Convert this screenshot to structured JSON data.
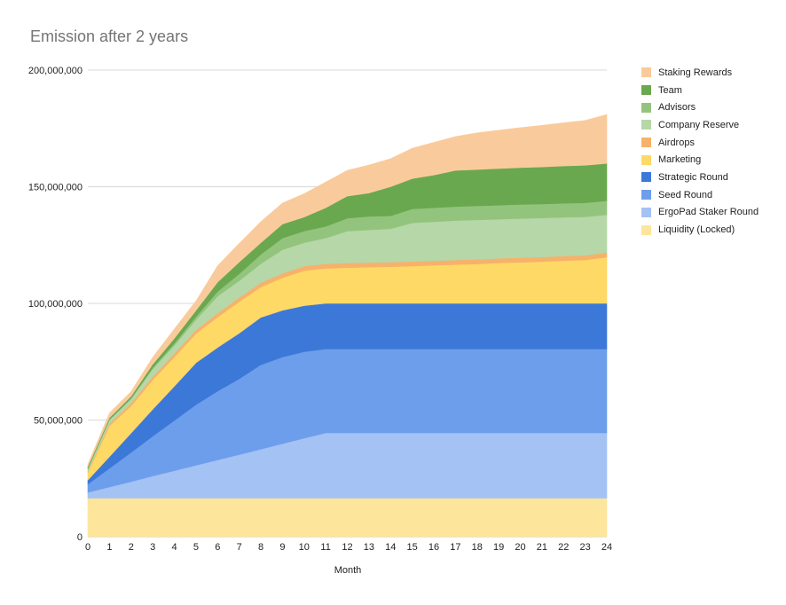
{
  "chart_data": {
    "type": "area",
    "stacked": true,
    "title": "Emission after 2 years",
    "xlabel": "Month",
    "ylabel": "",
    "x": [
      0,
      1,
      2,
      3,
      4,
      5,
      6,
      7,
      8,
      9,
      10,
      11,
      12,
      13,
      14,
      15,
      16,
      17,
      18,
      19,
      20,
      21,
      22,
      23,
      24
    ],
    "x_tick_labels": [
      "0",
      "1",
      "2",
      "3",
      "4",
      "5",
      "6",
      "7",
      "8",
      "9",
      "10",
      "11",
      "12",
      "13",
      "14",
      "15",
      "16",
      "17",
      "18",
      "19",
      "20",
      "21",
      "22",
      "23",
      "24"
    ],
    "ylim": [
      0,
      200000000
    ],
    "y_ticks": [
      0,
      50000000,
      100000000,
      150000000,
      200000000
    ],
    "y_tick_labels": [
      "0",
      "50,000,000",
      "100,000,000",
      "150,000,000",
      "200,000,000"
    ],
    "grid": true,
    "legend_position": "right",
    "series": [
      {
        "name": "Liquidity (Locked)",
        "color": "#fde59c",
        "values": [
          16500000,
          16500000,
          16500000,
          16500000,
          16500000,
          16500000,
          16500000,
          16500000,
          16500000,
          16500000,
          16500000,
          16500000,
          16500000,
          16500000,
          16500000,
          16500000,
          16500000,
          16500000,
          16500000,
          16500000,
          16500000,
          16500000,
          16500000,
          16500000,
          16500000
        ]
      },
      {
        "name": "ErgoPad Staker Round",
        "color": "#a4c2f4",
        "values": [
          2500000,
          4800000,
          7100000,
          9500000,
          11800000,
          14100000,
          16400000,
          18700000,
          21000000,
          23400000,
          25700000,
          28000000,
          28000000,
          28000000,
          28000000,
          28000000,
          28000000,
          28000000,
          28000000,
          28000000,
          28000000,
          28000000,
          28000000,
          28000000,
          28000000
        ]
      },
      {
        "name": "Seed Round",
        "color": "#6d9eeb",
        "values": [
          3500000,
          8000000,
          12500000,
          17100000,
          21500000,
          26000000,
          29500000,
          32500000,
          36200000,
          37100000,
          37100000,
          36000000,
          36000000,
          36000000,
          36000000,
          36000000,
          36000000,
          36000000,
          36000000,
          36000000,
          36000000,
          36000000,
          36000000,
          36000000,
          36000000
        ]
      },
      {
        "name": "Strategic Round",
        "color": "#3c78d8",
        "values": [
          1800000,
          5000000,
          8300000,
          11500000,
          14700000,
          17900000,
          18700000,
          19500000,
          20300000,
          20000000,
          19700000,
          19500000,
          19500000,
          19500000,
          19500000,
          19500000,
          19500000,
          19500000,
          19500000,
          19500000,
          19500000,
          19500000,
          19500000,
          19500000,
          19500000
        ]
      },
      {
        "name": "Marketing",
        "color": "#ffd966",
        "values": [
          3100000,
          13200000,
          11600000,
          12600000,
          12500000,
          12500000,
          13000000,
          13500000,
          13000000,
          14000000,
          15000000,
          15000000,
          15300000,
          15500000,
          15700000,
          16000000,
          16300000,
          16600000,
          16900000,
          17300000,
          17600000,
          17900000,
          18300000,
          18600000,
          19800000
        ]
      },
      {
        "name": "Airdrops",
        "color": "#f6b26b",
        "values": [
          500000,
          1000000,
          1200000,
          1400000,
          1500000,
          1600000,
          1700000,
          1800000,
          1900000,
          1900000,
          2000000,
          2000000,
          2000000,
          2000000,
          2000000,
          2000000,
          2000000,
          2000000,
          2000000,
          2000000,
          2000000,
          2000000,
          2000000,
          2000000,
          2000000
        ]
      },
      {
        "name": "Company Reserve",
        "color": "#b6d7a8",
        "values": [
          1100000,
          1500000,
          1800000,
          3300000,
          3500000,
          4400000,
          7300000,
          7200000,
          8100000,
          10100000,
          10000000,
          11000000,
          13700000,
          14000000,
          14300000,
          16500000,
          16700000,
          16900000,
          16900000,
          16800000,
          16800000,
          16700000,
          16600000,
          16500000,
          16200000
        ]
      },
      {
        "name": "Advisors",
        "color": "#93c47d",
        "values": [
          200000,
          300000,
          400000,
          600000,
          900000,
          1300000,
          2000000,
          3000000,
          4000000,
          5000000,
          5000000,
          5000000,
          5500000,
          5800000,
          5500000,
          6000000,
          6000000,
          6000000,
          6000000,
          6000000,
          6000000,
          6000000,
          6000000,
          6000000,
          6000000
        ]
      },
      {
        "name": "Team",
        "color": "#6aa84f",
        "values": [
          800000,
          700000,
          800000,
          1400000,
          2100000,
          2700000,
          4000000,
          5000000,
          5000000,
          6000000,
          6000000,
          8000000,
          9500000,
          10000000,
          12500000,
          13000000,
          14000000,
          15500000,
          15600000,
          15700000,
          15800000,
          15900000,
          16000000,
          16100000,
          16000000
        ]
      },
      {
        "name": "Staking Rewards",
        "color": "#f9cb9c",
        "values": [
          1000000,
          2000000,
          2000000,
          3000000,
          4000000,
          4000000,
          7000000,
          8000000,
          9000000,
          9000000,
          10000000,
          11000000,
          11000000,
          12000000,
          12000000,
          13000000,
          14000000,
          14500000,
          15700000,
          16400000,
          17100000,
          17800000,
          18500000,
          19200000,
          21000000
        ]
      }
    ]
  }
}
